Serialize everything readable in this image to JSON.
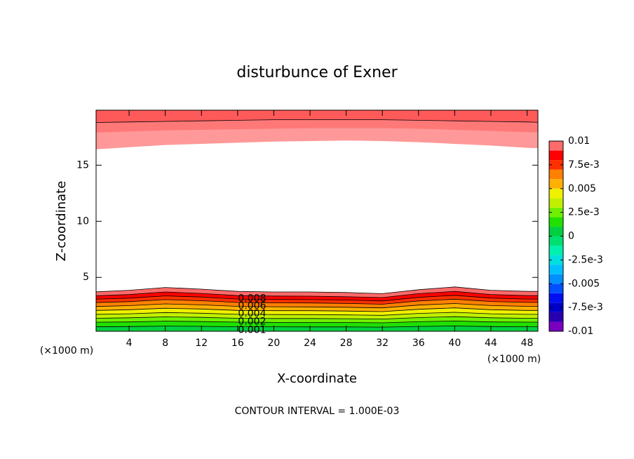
{
  "chart_data": {
    "type": "contour",
    "title": "disturbunce of Exner",
    "x_label": "X-coordinate",
    "y_label": "Z-coordinate",
    "x_unit": "(×1000 m)",
    "y_unit": "(×1000 m)",
    "footer": "CONTOUR INTERVAL = 1.000E-03",
    "xlim": [
      0.35,
      49.2
    ],
    "ylim": [
      0.2,
      19.9
    ],
    "xticks": [
      4,
      8,
      12,
      16,
      20,
      24,
      28,
      32,
      36,
      40,
      44,
      48
    ],
    "yticks": [
      5,
      10,
      15
    ],
    "contour_x": [
      0,
      4,
      8,
      12,
      16,
      20,
      24,
      28,
      32,
      36,
      40,
      44,
      48,
      50
    ],
    "lower_contours": [
      {
        "level": 0.01,
        "z": [
          3.7,
          3.85,
          4.1,
          3.95,
          3.75,
          3.7,
          3.7,
          3.65,
          3.55,
          3.9,
          4.15,
          3.85,
          3.75,
          3.75
        ]
      },
      {
        "level": 0.009,
        "z": [
          3.35,
          3.47,
          3.7,
          3.57,
          3.38,
          3.34,
          3.33,
          3.28,
          3.2,
          3.55,
          3.75,
          3.48,
          3.38,
          3.38
        ]
      },
      {
        "level": 0.008,
        "z": [
          3.05,
          3.15,
          3.35,
          3.25,
          3.07,
          3.03,
          3.02,
          2.98,
          2.9,
          3.22,
          3.4,
          3.16,
          3.07,
          3.07
        ]
      },
      {
        "level": 0.007,
        "z": [
          2.75,
          2.84,
          3.02,
          2.92,
          2.77,
          2.73,
          2.72,
          2.68,
          2.61,
          2.9,
          3.06,
          2.85,
          2.77,
          2.77
        ]
      },
      {
        "level": 0.006,
        "z": [
          2.4,
          2.48,
          2.64,
          2.55,
          2.42,
          2.38,
          2.37,
          2.34,
          2.28,
          2.53,
          2.67,
          2.49,
          2.42,
          2.42
        ]
      },
      {
        "level": 0.005,
        "z": [
          2.05,
          2.12,
          2.25,
          2.18,
          2.06,
          2.03,
          2.03,
          2.0,
          1.95,
          2.16,
          2.28,
          2.12,
          2.06,
          2.06
        ]
      },
      {
        "level": 0.004,
        "z": [
          1.7,
          1.76,
          1.87,
          1.81,
          1.71,
          1.69,
          1.68,
          1.66,
          1.62,
          1.79,
          1.89,
          1.76,
          1.71,
          1.71
        ]
      },
      {
        "level": 0.003,
        "z": [
          1.35,
          1.4,
          1.48,
          1.44,
          1.36,
          1.34,
          1.34,
          1.32,
          1.29,
          1.42,
          1.5,
          1.4,
          1.36,
          1.36
        ]
      },
      {
        "level": 0.002,
        "z": [
          1.0,
          1.03,
          1.1,
          1.06,
          1.01,
          0.99,
          0.99,
          0.98,
          0.95,
          1.05,
          1.11,
          1.03,
          1.01,
          1.01
        ]
      },
      {
        "level": 0.001,
        "z": [
          0.6,
          0.62,
          0.66,
          0.64,
          0.6,
          0.6,
          0.59,
          0.59,
          0.57,
          0.63,
          0.67,
          0.62,
          0.6,
          0.6
        ]
      }
    ],
    "upper_contours": [
      {
        "color": "#ff9999",
        "outline": false,
        "z": [
          16.4,
          16.6,
          16.8,
          16.9,
          17.0,
          17.1,
          17.15,
          17.2,
          17.15,
          17.05,
          16.9,
          16.75,
          16.55,
          16.5
        ]
      },
      {
        "color": "#ff7878",
        "outline": false,
        "z": [
          17.9,
          18.0,
          18.1,
          18.15,
          18.2,
          18.25,
          18.3,
          18.3,
          18.3,
          18.25,
          18.15,
          18.05,
          17.95,
          17.9
        ]
      },
      {
        "color": "#ff5a5a",
        "outline": true,
        "z": [
          18.8,
          18.85,
          18.9,
          18.95,
          19.0,
          19.05,
          19.05,
          19.05,
          19.05,
          19.0,
          18.95,
          18.9,
          18.85,
          18.8
        ]
      }
    ],
    "contour_labels": [
      {
        "level": 0.008,
        "x": 17.6,
        "z": 3.1
      },
      {
        "level": 0.006,
        "x": 17.6,
        "z": 2.45
      },
      {
        "level": 0.004,
        "x": 17.6,
        "z": 1.75
      },
      {
        "level": 0.002,
        "x": 17.6,
        "z": 1.05
      },
      {
        "level": 0.001,
        "x": 17.6,
        "z": 0.3
      }
    ],
    "colorbar": {
      "clim": [
        -0.01,
        0.01
      ],
      "colors": [
        "#7a00c0",
        "#2800b0",
        "#0000c8",
        "#0010f0",
        "#0050ff",
        "#0090ff",
        "#00c0ff",
        "#00e0e0",
        "#00f0b0",
        "#00e070",
        "#00d040",
        "#20e000",
        "#70f000",
        "#c0f000",
        "#f0f000",
        "#ffb000",
        "#ff8000",
        "#ff3000",
        "#ff0000",
        "#ff6a6a"
      ],
      "ticks": [
        0.01,
        {
          "value": 0.0075,
          "label": "7.5e-3"
        },
        {
          "value": 0.005,
          "label": "0.005"
        },
        {
          "value": 0.0025,
          "label": "2.5e-3"
        },
        0,
        {
          "value": -0.0025,
          "label": "-2.5e-3"
        },
        {
          "value": -0.005,
          "label": "-0.005"
        },
        {
          "value": -0.0075,
          "label": "-7.5e-3"
        },
        -0.01
      ]
    }
  }
}
